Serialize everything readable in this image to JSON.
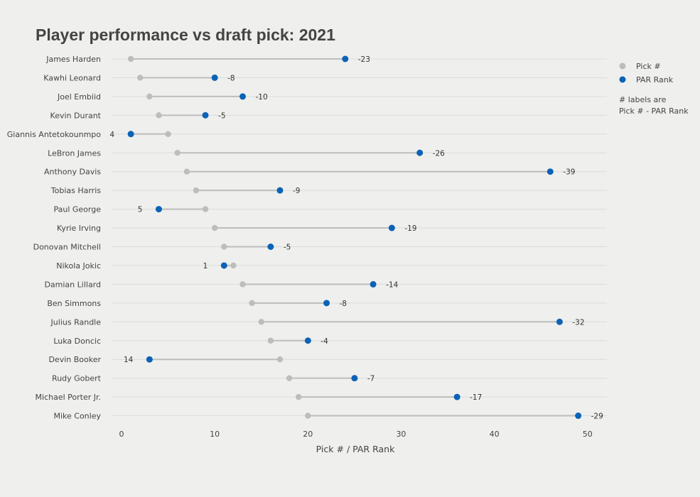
{
  "chart_data": {
    "type": "dumbbell",
    "title": "Player performance vs draft pick: 2021",
    "xlabel": "Pick # / PAR Rank",
    "ylabel": "",
    "xlim": [
      -1,
      52
    ],
    "xticks": [
      0,
      10,
      20,
      30,
      40,
      50
    ],
    "grid": true,
    "legend_position": "right",
    "series": [
      {
        "name": "Pick #",
        "key": "pick",
        "color": "#bdbdbd"
      },
      {
        "name": "PAR Rank",
        "key": "par",
        "color": "#0b63b6"
      }
    ],
    "legend_note": [
      "# labels are",
      "Pick # - PAR Rank"
    ],
    "categories": [
      "James Harden",
      "Kawhi Leonard",
      "Joel Embiid",
      "Kevin Durant",
      "Giannis Antetokounmpo",
      "LeBron James",
      "Anthony Davis",
      "Tobias Harris",
      "Paul George",
      "Kyrie Irving",
      "Donovan Mitchell",
      "Nikola Jokic",
      "Damian Lillard",
      "Ben Simmons",
      "Julius Randle",
      "Luka Doncic",
      "Devin Booker",
      "Rudy Gobert",
      "Michael Porter Jr.",
      "Mike Conley"
    ],
    "pick": [
      1,
      2,
      3,
      4,
      5,
      6,
      7,
      8,
      9,
      10,
      11,
      12,
      13,
      14,
      15,
      16,
      17,
      18,
      19,
      20
    ],
    "par": [
      24,
      10,
      13,
      9,
      1,
      32,
      46,
      17,
      4,
      29,
      16,
      11,
      27,
      22,
      47,
      20,
      3,
      25,
      36,
      49
    ],
    "labels": [
      "-23",
      "-8",
      "-10",
      "-5",
      "4",
      "-26",
      "-39",
      "-9",
      "5",
      "-19",
      "-5",
      "1",
      "-14",
      "-8",
      "-32",
      "-4",
      "14",
      "-7",
      "-17",
      "-29"
    ]
  }
}
